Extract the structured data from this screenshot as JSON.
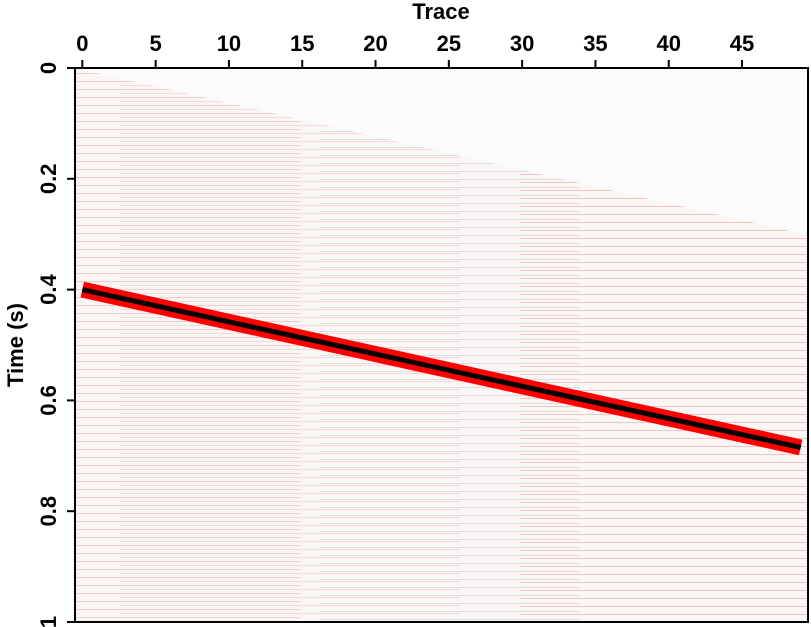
{
  "chart_data": {
    "type": "seismic-image",
    "xlabel": "Trace",
    "ylabel": "Time (s)",
    "xlim": [
      -0.5,
      49.5
    ],
    "xticks": [
      0,
      5,
      10,
      15,
      20,
      25,
      30,
      35,
      40,
      45
    ],
    "ylim": [
      0,
      1
    ],
    "yticks": [
      0,
      0.2,
      0.4,
      0.6,
      0.8,
      1
    ],
    "x": [
      0,
      49
    ],
    "series": [
      {
        "color": "#ff0000",
        "values": [
          0.4,
          0.685
        ]
      }
    ]
  }
}
